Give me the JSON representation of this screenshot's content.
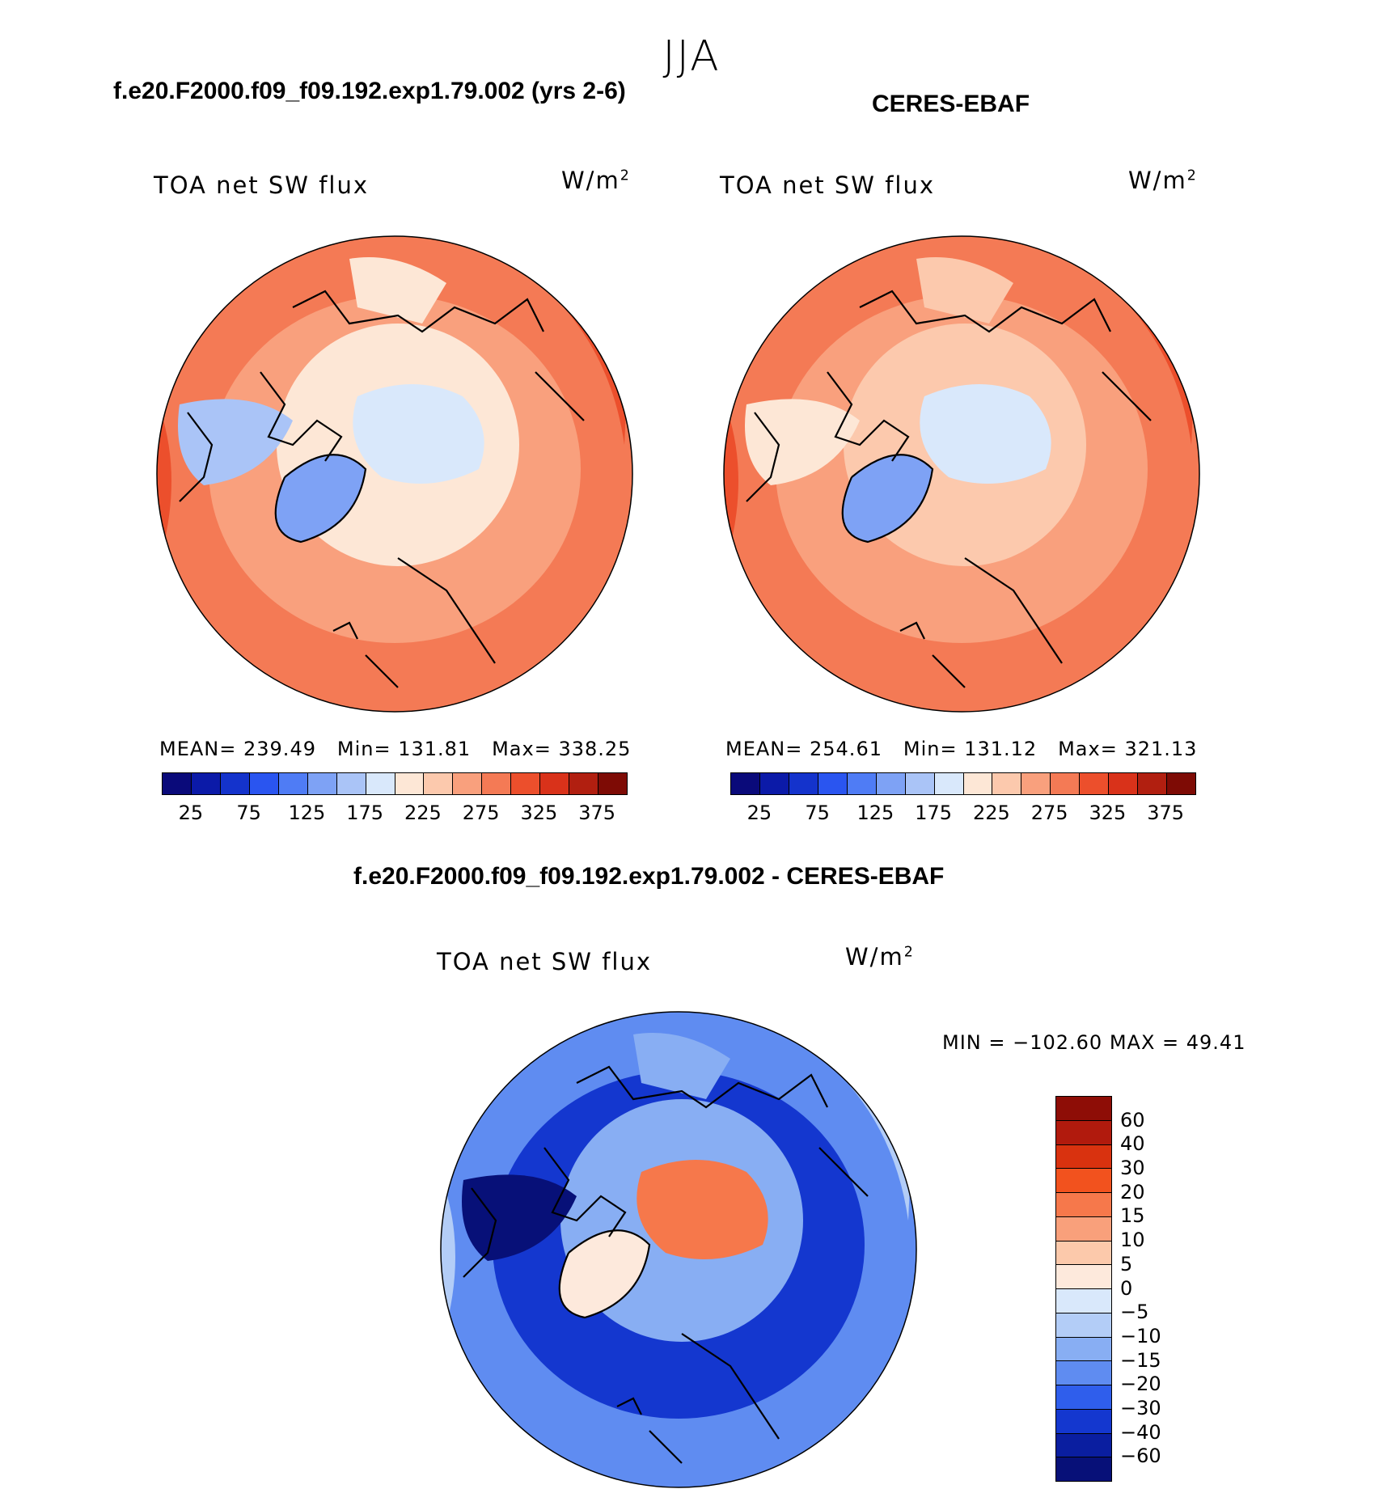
{
  "season": "JJA",
  "left_title": "f.e20.F2000.f09_f09.192.exp1.79.002 (yrs 2-6)",
  "right_title": "CERES-EBAF",
  "diff_title": "f.e20.F2000.f09_f09.192.exp1.79.002 - CERES-EBAF",
  "panels": {
    "model": {
      "variable": "TOA net SW flux",
      "units": "W/m",
      "units_sup": "2",
      "mean_label": "MEAN=",
      "mean": "239.49",
      "min_label": "Min=",
      "min": "131.81",
      "max_label": "Max=",
      "max": "338.25"
    },
    "obs": {
      "variable": "TOA net SW flux",
      "units": "W/m",
      "units_sup": "2",
      "mean_label": "MEAN=",
      "mean": "254.61",
      "min_label": "Min=",
      "min": "131.12",
      "max_label": "Max=",
      "max": "321.13"
    },
    "diff": {
      "variable": "TOA net SW flux",
      "units": "W/m",
      "units_sup": "2",
      "minmax_label": "MIN = −102.60 MAX =   49.41"
    }
  },
  "abs_colorbar": {
    "ticks": [
      "25",
      "75",
      "125",
      "175",
      "225",
      "275",
      "325",
      "375"
    ],
    "colors": [
      "#0a0a7a",
      "#0b1aa8",
      "#1433cc",
      "#2a55f0",
      "#4f7cf5",
      "#7ea2f5",
      "#aac4f7",
      "#d9e8fb",
      "#fde7d6",
      "#fcc9ad",
      "#f9a07d",
      "#f47a55",
      "#ec4f2c",
      "#d9321a",
      "#b11f10",
      "#7e0b05"
    ]
  },
  "diff_colorbar": {
    "labels": [
      "60",
      "40",
      "30",
      "20",
      "15",
      "10",
      "5",
      "0",
      "−5",
      "−10",
      "−15",
      "−20",
      "−30",
      "−40",
      "−60"
    ],
    "colors": [
      "#8e0d06",
      "#b11a0d",
      "#d9320f",
      "#f2521e",
      "#f6784b",
      "#f9a07b",
      "#fcc9ab",
      "#fde9dc",
      "#d9e8fb",
      "#b3cdf7",
      "#88aef3",
      "#5f8cf1",
      "#2f5eec",
      "#1437cf",
      "#0a1ea0",
      "#071078"
    ]
  },
  "map_colors": {
    "model": {
      "outer": "#f47a55",
      "mid": "#f9a07d",
      "inner": "#fde7d6",
      "ice": "#d9e8fb",
      "greenland": "#7ea2f5",
      "canada": "#aac4f7",
      "rim": "#ec4f2c"
    },
    "obs": {
      "outer": "#f47a55",
      "mid": "#f9a07d",
      "inner": "#fcc9ad",
      "ice": "#d9e8fb",
      "greenland": "#7ea2f5",
      "canada": "#fde7d6",
      "rim": "#ec4f2c"
    },
    "diff": {
      "outer": "#5f8cf1",
      "mid": "#1437cf",
      "inner": "#88aef3",
      "ice": "#f6784b",
      "greenland": "#fde9dc",
      "canada": "#071078",
      "rim": "#b3cdf7"
    }
  }
}
